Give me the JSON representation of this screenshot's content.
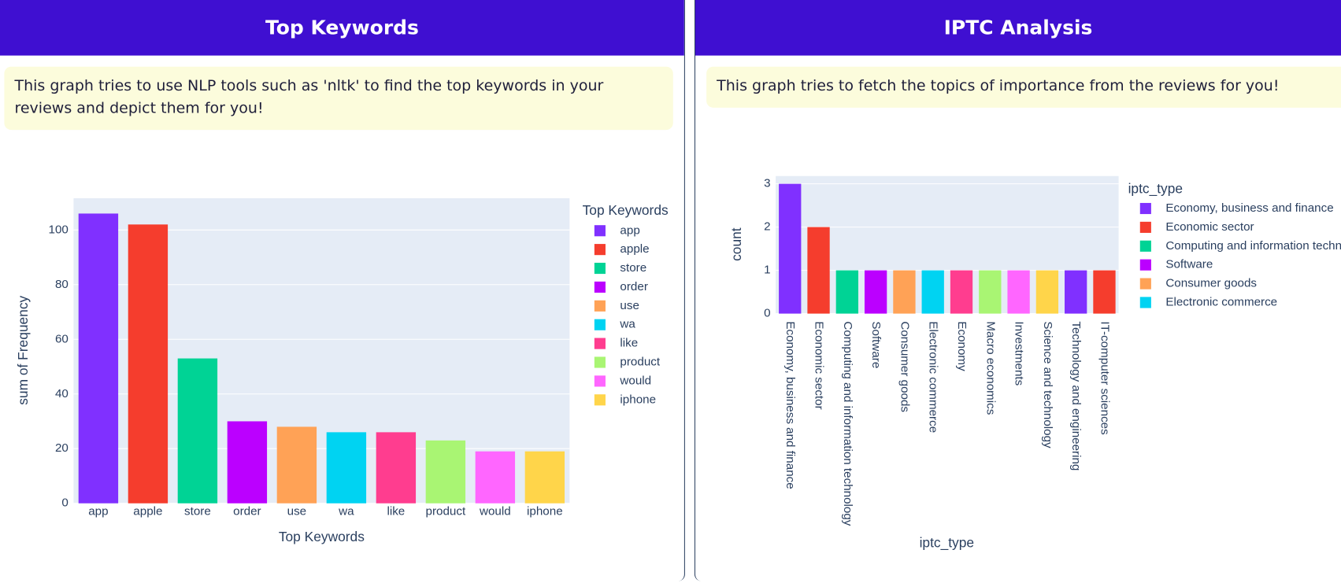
{
  "panels": [
    {
      "title": "Top Keywords",
      "description": "This graph tries to use NLP tools such as 'nltk' to find the top keywords in your reviews and depict them for you!"
    },
    {
      "title": "IPTC Analysis",
      "description": "This graph tries to fetch the topics of importance from the reviews for you!"
    }
  ],
  "chart_data": [
    {
      "type": "bar",
      "x_label": "Top Keywords",
      "y_label": "sum of Frequency",
      "legend_title": "Top Keywords",
      "categories": [
        "app",
        "apple",
        "store",
        "order",
        "use",
        "wa",
        "like",
        "product",
        "would",
        "iphone"
      ],
      "values": [
        106,
        102,
        53,
        30,
        28,
        26,
        26,
        23,
        19,
        19
      ],
      "colors": [
        "#8030ff",
        "#f53d2d",
        "#00d395",
        "#bb00ff",
        "#ffa256",
        "#00d3f2",
        "#ff3d8f",
        "#a9f573",
        "#ff66ff",
        "#ffd54a"
      ],
      "ylim": [
        0,
        111.6
      ],
      "yticks": [
        0,
        20,
        40,
        60,
        80,
        100
      ],
      "grid": true
    },
    {
      "type": "bar",
      "x_label": "iptc_type",
      "y_label": "count",
      "legend_title": "iptc_type",
      "categories": [
        "Economy, business and finance",
        "Economic sector",
        "Computing and information technology",
        "Software",
        "Consumer goods",
        "Electronic commerce",
        "Economy",
        "Macro economics",
        "Investments",
        "Science and technology",
        "Technology and engineering",
        "IT-computer sciences"
      ],
      "values": [
        3,
        2,
        1,
        1,
        1,
        1,
        1,
        1,
        1,
        1,
        1,
        1
      ],
      "colors": [
        "#8030ff",
        "#f53d2d",
        "#00d395",
        "#bb00ff",
        "#ffa256",
        "#00d3f2",
        "#ff3d8f",
        "#a9f573",
        "#ff66ff",
        "#ffd54a",
        "#8030ff",
        "#f53d2d"
      ],
      "ylim": [
        0,
        3.18
      ],
      "yticks": [
        0,
        1,
        2,
        3
      ],
      "grid": true
    }
  ]
}
